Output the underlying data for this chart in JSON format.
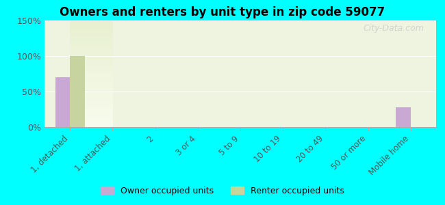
{
  "title": "Owners and renters by unit type in zip code 59077",
  "categories": [
    "1, detached",
    "1, attached",
    "2",
    "3 or 4",
    "5 to 9",
    "10 to 19",
    "20 to 49",
    "50 or more",
    "Mobile home"
  ],
  "owner_values": [
    70,
    0,
    0,
    0,
    0,
    0,
    0,
    0,
    28
  ],
  "renter_values": [
    100,
    0,
    0,
    0,
    0,
    0,
    0,
    0,
    0
  ],
  "owner_color": "#c9a8d4",
  "renter_color": "#c8d4a0",
  "ylim": [
    0,
    150
  ],
  "yticks": [
    0,
    50,
    100,
    150
  ],
  "ytick_labels": [
    "0%",
    "50%",
    "100%",
    "150%"
  ],
  "background_color": "#00ffff",
  "plot_bg_top": "#e8f0d0",
  "plot_bg_bottom": "#f5f8ee",
  "watermark": "City-Data.com",
  "legend_owner": "Owner occupied units",
  "legend_renter": "Renter occupied units",
  "bar_width": 0.35
}
